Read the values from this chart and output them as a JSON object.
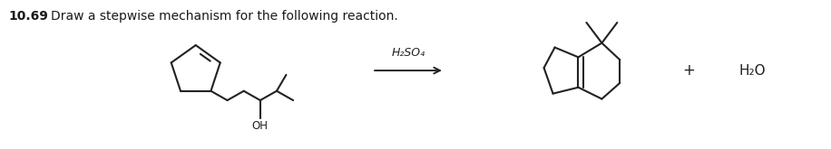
{
  "title_number": "10.69",
  "title_text": "Draw a stepwise mechanism for the following reaction.",
  "reagent": "H₂SO₄",
  "product_plus": "+",
  "byproduct": "H₂O",
  "background": "#ffffff",
  "text_color": "#1a1a1a",
  "line_color": "#222222",
  "fig_width": 9.16,
  "fig_height": 1.65,
  "dpi": 100
}
